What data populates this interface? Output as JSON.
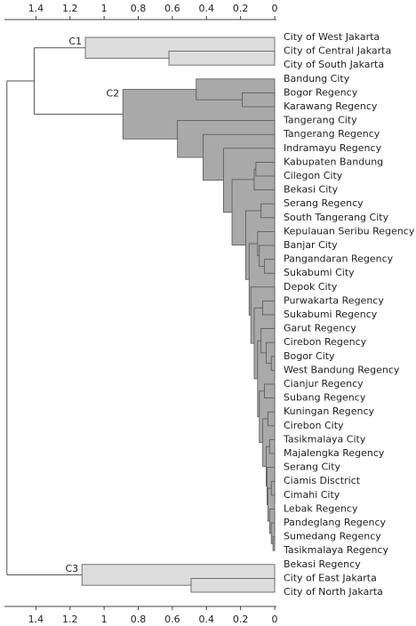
{
  "chart_data": {
    "type": "dendrogram",
    "xlim": [
      1.6,
      0
    ],
    "xticks": [
      1.4,
      1.2,
      1,
      0.8,
      0.6,
      0.4,
      0.2,
      0
    ],
    "tree": {
      "height": 1.57,
      "children": [
        {
          "height": 1.41,
          "children": [
            {
              "label": "C1",
              "color": "#dcdcdc",
              "height": 1.11,
              "children": [
                "City of West Jakarta",
                {
                  "height": 0.62,
                  "children": [
                    "City of Central Jakarta",
                    "City of South Jakarta"
                  ]
                }
              ]
            },
            {
              "label": "C2",
              "color": "#a9a9a9",
              "height": 0.89,
              "children": [
                {
                  "height": 0.46,
                  "children": [
                    "Bandung City",
                    {
                      "height": 0.19,
                      "children": [
                        "Bogor Regency",
                        "Karawang Regency"
                      ]
                    }
                  ]
                },
                {
                  "height": 0.57,
                  "children": [
                    "Tangerang City",
                    {
                      "height": 0.42,
                      "children": [
                        "Tangerang Regency",
                        {
                          "height": 0.3,
                          "children": [
                            "Indramayu Regency",
                            {
                              "height": 0.25,
                              "children": [
                                {
                                  "height": 0.12,
                                  "children": [
                                    {
                                      "height": 0.11,
                                      "children": [
                                        "Kabupaten Bandung",
                                        "Cilegon City"
                                      ]
                                    },
                                    "Bekasi City"
                                  ]
                                },
                                {
                                  "height": 0.17,
                                  "children": [
                                    {
                                      "height": 0.08,
                                      "children": [
                                        "Serang Regency",
                                        "South Tangerang City"
                                      ]
                                    },
                                    {
                                      "height": 0.15,
                                      "children": [
                                        {
                                          "height": 0.1,
                                          "children": [
                                            "Kepulauan Seribu Regency",
                                            {
                                              "height": 0.09,
                                              "children": [
                                                "Banjar City",
                                                {
                                                  "height": 0.06,
                                                  "children": [
                                                    "Pangandaran Regency",
                                                    "Sukabumi City"
                                                  ]
                                                }
                                              ]
                                            }
                                          ]
                                        },
                                        {
                                          "height": 0.14,
                                          "children": [
                                            "Depok City",
                                            {
                                              "height": 0.12,
                                              "children": [
                                                {
                                                  "height": 0.07,
                                                  "children": [
                                                    "Purwakarta Regency",
                                                    "Sukabumi Regency"
                                                  ]
                                                },
                                                {
                                                  "height": 0.1,
                                                  "children": [
                                                    {
                                                      "height": 0.08,
                                                      "children": [
                                                        "Garut Regency",
                                                        {
                                                          "height": 0.05,
                                                          "children": [
                                                            "Cirebon Regency",
                                                            {
                                                              "height": 0.02,
                                                              "children": [
                                                                "Bogor City",
                                                                "West Bandung Regency"
                                                              ]
                                                            }
                                                          ]
                                                        }
                                                      ]
                                                    },
                                                    {
                                                      "height": 0.09,
                                                      "children": [
                                                        {
                                                          "height": 0.06,
                                                          "children": [
                                                            "Cianjur Regency",
                                                            "Subang Regency"
                                                          ]
                                                        },
                                                        {
                                                          "height": 0.07,
                                                          "children": [
                                                            {
                                                              "height": 0.04,
                                                              "children": [
                                                                "Kuningan Regency",
                                                                "Cirebon City"
                                                              ]
                                                            },
                                                            {
                                                              "height": 0.05,
                                                              "children": [
                                                                {
                                                                  "height": 0.03,
                                                                  "children": [
                                                                    "Tasikmalaya City",
                                                                    "Majalengka Regency"
                                                                  ]
                                                                },
                                                                {
                                                                  "height": 0.045,
                                                                  "children": [
                                                                    "Serang City",
                                                                    {
                                                                      "height": 0.04,
                                                                      "children": [
                                                                        {
                                                                          "height": 0.02,
                                                                          "children": [
                                                                            "Ciamis Disctrict",
                                                                            "Cimahi City"
                                                                          ]
                                                                        },
                                                                        {
                                                                          "height": 0.03,
                                                                          "children": [
                                                                            "Lebak Regency",
                                                                            {
                                                                              "height": 0.02,
                                                                              "children": [
                                                                                "Pandeglang Regency",
                                                                                {
                                                                                  "height": 0.01,
                                                                                  "children": [
                                                                                    "Sumedang Regency",
                                                                                    "Tasikmalaya Regency"
                                                                                  ]
                                                                                }
                                                                              ]
                                                                            }
                                                                          ]
                                                                        }
                                                                      ]
                                                                    }
                                                                  ]
                                                                }
                                                              ]
                                                            }
                                                          ]
                                                        }
                                                      ]
                                                    }
                                                  ]
                                                }
                                              ]
                                            }
                                          ]
                                        }
                                      ]
                                    }
                                  ]
                                }
                              ]
                            }
                          ]
                        }
                      ]
                    }
                  ]
                }
              ]
            }
          ]
        },
        {
          "label": "C3",
          "color": "#dcdcdc",
          "height": 1.13,
          "children": [
            "Bekasi Regency",
            {
              "height": 0.49,
              "children": [
                "City of East Jakarta",
                "City of North Jakarta"
              ]
            }
          ]
        }
      ]
    }
  }
}
